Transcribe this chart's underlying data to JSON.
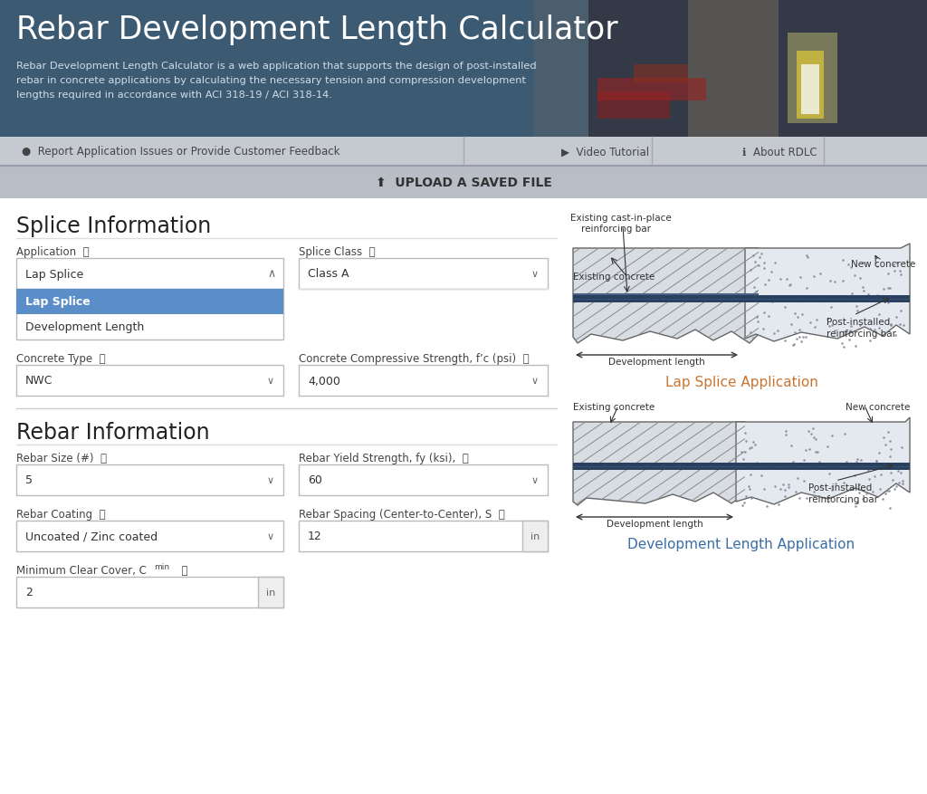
{
  "title": "Rebar Development Length Calculator",
  "subtitle_lines": [
    "Rebar Development Length Calculator is a web application that supports the design of post-installed",
    "rebar in concrete applications by calculating the necessary tension and compression development",
    "lengths required in accordance with ACI 318-19 / ACI 318-14."
  ],
  "nav_items": [
    "Report Application Issues or Provide Customer Feedback",
    "Video Tutorial",
    "About RDLC"
  ],
  "upload_text": "UPLOAD A SAVED FILE",
  "section1_title": "Splice Information",
  "section2_title": "Rebar Information",
  "app_label": "Application",
  "app_value": "Lap Splice",
  "dropdown_options": [
    "Lap Splice",
    "Development Length"
  ],
  "splice_label": "Splice Class",
  "splice_value": "Class A",
  "concrete_type_label": "Concrete Type",
  "concrete_type_value": "NWC",
  "concrete_strength_label": "Concrete Compressive Strength, f’c (psi)",
  "concrete_strength_value": "4,000",
  "rebar_size_label": "Rebar Size (#)",
  "rebar_size_value": "5",
  "rebar_yield_label": "Rebar Yield Strength, fy (ksi),",
  "rebar_yield_value": "60",
  "rebar_coating_label": "Rebar Coating",
  "rebar_coating_value": "Uncoated / Zinc coated",
  "rebar_spacing_label": "Rebar Spacing (Center-to-Center), S",
  "rebar_spacing_value": "12",
  "rebar_spacing_unit": "in",
  "min_cover_label": "Minimum Clear Cover, C_min",
  "min_cover_value": "2",
  "min_cover_unit": "in",
  "lap_splice_caption": "Lap Splice Application",
  "dev_length_caption": "Development Length Application",
  "header_bg_dark": "#3d5a73",
  "nav_bg": "#c5cad1",
  "upload_bg": "#b8bdc6",
  "body_bg": "#ffffff",
  "selected_item_bg": "#5b8dc8",
  "selected_item_text": "#ffffff",
  "border_color": "#bbbbbb",
  "section_title_color": "#222222",
  "label_color": "#444444",
  "value_color": "#333333",
  "nav_text_color": "#444444",
  "upload_text_color": "#333333",
  "caption1_color": "#c87532",
  "caption2_color": "#3a6ea5",
  "diag_existing_fill": "#d8dde3",
  "diag_new_fill": "#e4e9ef",
  "rebar_fill": "#2a4060",
  "diag_border": "#666666",
  "hatch_color": "#999999"
}
